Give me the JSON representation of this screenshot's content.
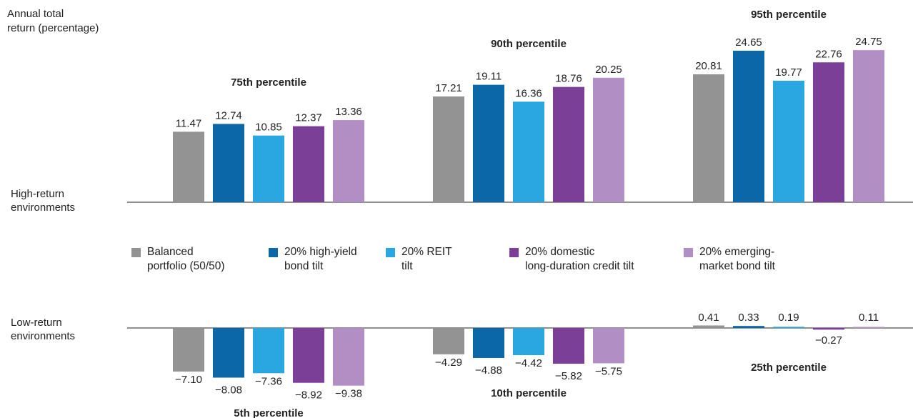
{
  "colors": {
    "balanced": "#939393",
    "high_yield": "#0b67a8",
    "reit": "#2aa6e0",
    "long_credit": "#7b3f98",
    "em_bond": "#b18ec4",
    "axis": "#4d4d4d"
  },
  "labels": {
    "y_axis_title": "Annual total\nreturn (percentage)",
    "high_env": "High-return\nenvironments",
    "low_env": "Low-return\nenvironments"
  },
  "legend": [
    {
      "text": "Balanced\nportfolio (50/50)",
      "color_key": "balanced"
    },
    {
      "text": "20% high-yield\nbond tilt",
      "color_key": "high_yield"
    },
    {
      "text": "20% REIT\ntilt",
      "color_key": "reit"
    },
    {
      "text": "20% domestic\nlong-duration credit tilt",
      "color_key": "long_credit"
    },
    {
      "text": "20% emerging-\nmarket bond tilt",
      "color_key": "em_bond"
    }
  ],
  "chart_data": {
    "type": "bar",
    "series_names": [
      "Balanced portfolio (50/50)",
      "20% high-yield bond tilt",
      "20% REIT tilt",
      "20% domestic long-duration credit tilt",
      "20% emerging-market bond tilt"
    ],
    "high_return": [
      {
        "percentile": "75th percentile",
        "values": [
          11.47,
          12.74,
          10.85,
          12.37,
          13.36
        ],
        "value_labels": [
          "11.47",
          "12.74",
          "10.85",
          "12.37",
          "13.36"
        ]
      },
      {
        "percentile": "90th percentile",
        "values": [
          17.21,
          19.11,
          16.36,
          18.76,
          20.25
        ],
        "value_labels": [
          "17.21",
          "19.11",
          "16.36",
          "18.76",
          "20.25"
        ]
      },
      {
        "percentile": "95th percentile",
        "values": [
          20.81,
          24.65,
          19.77,
          22.76,
          24.75
        ],
        "value_labels": [
          "20.81",
          "24.65",
          "19.77",
          "22.76",
          "24.75"
        ]
      }
    ],
    "low_return": [
      {
        "percentile": "5th percentile",
        "values": [
          -7.1,
          -8.08,
          -7.36,
          -8.92,
          -9.38
        ],
        "value_labels": [
          "−7.10",
          "−8.08",
          "−7.36",
          "−8.92",
          "−9.38"
        ]
      },
      {
        "percentile": "10th percentile",
        "values": [
          -4.29,
          -4.88,
          -4.42,
          -5.82,
          -5.75
        ],
        "value_labels": [
          "−4.29",
          "−4.88",
          "−4.42",
          "−5.82",
          "−5.75"
        ]
      },
      {
        "percentile": "25th percentile",
        "values": [
          0.41,
          0.33,
          0.19,
          -0.27,
          0.11
        ],
        "value_labels": [
          "0.41",
          "0.33",
          "0.19",
          "−0.27",
          "0.11"
        ]
      }
    ]
  }
}
